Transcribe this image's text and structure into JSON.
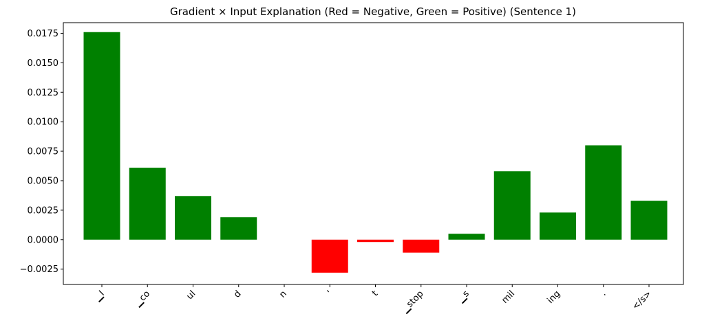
{
  "chart_data": {
    "type": "bar",
    "title": "Gradient × Input Explanation (Red = Negative, Green = Positive) (Sentence 1)",
    "xlabel": "",
    "ylabel": "",
    "categories": [
      "▁I",
      "▁co",
      "ul",
      "d",
      "n",
      "'",
      "t",
      "▁stop",
      "▁s",
      "mil",
      "ing",
      ".",
      "</s>"
    ],
    "values": [
      0.0176,
      0.0061,
      0.0037,
      0.0019,
      0.0,
      -0.0028,
      -0.0002,
      -0.0011,
      0.0005,
      0.0058,
      0.0023,
      0.008,
      0.0033
    ],
    "ylim": [
      -0.0038,
      0.0184
    ],
    "yticks": [
      -0.0025,
      0.0,
      0.0025,
      0.005,
      0.0075,
      0.01,
      0.0125,
      0.015,
      0.0175
    ],
    "ytick_labels": [
      "−0.0025",
      "0.0000",
      "0.0025",
      "0.0050",
      "0.0075",
      "0.0100",
      "0.0125",
      "0.0150",
      "0.0175"
    ],
    "colors": {
      "positive": "#008000",
      "negative": "#ff0000"
    },
    "grid": false,
    "legend": "none"
  }
}
